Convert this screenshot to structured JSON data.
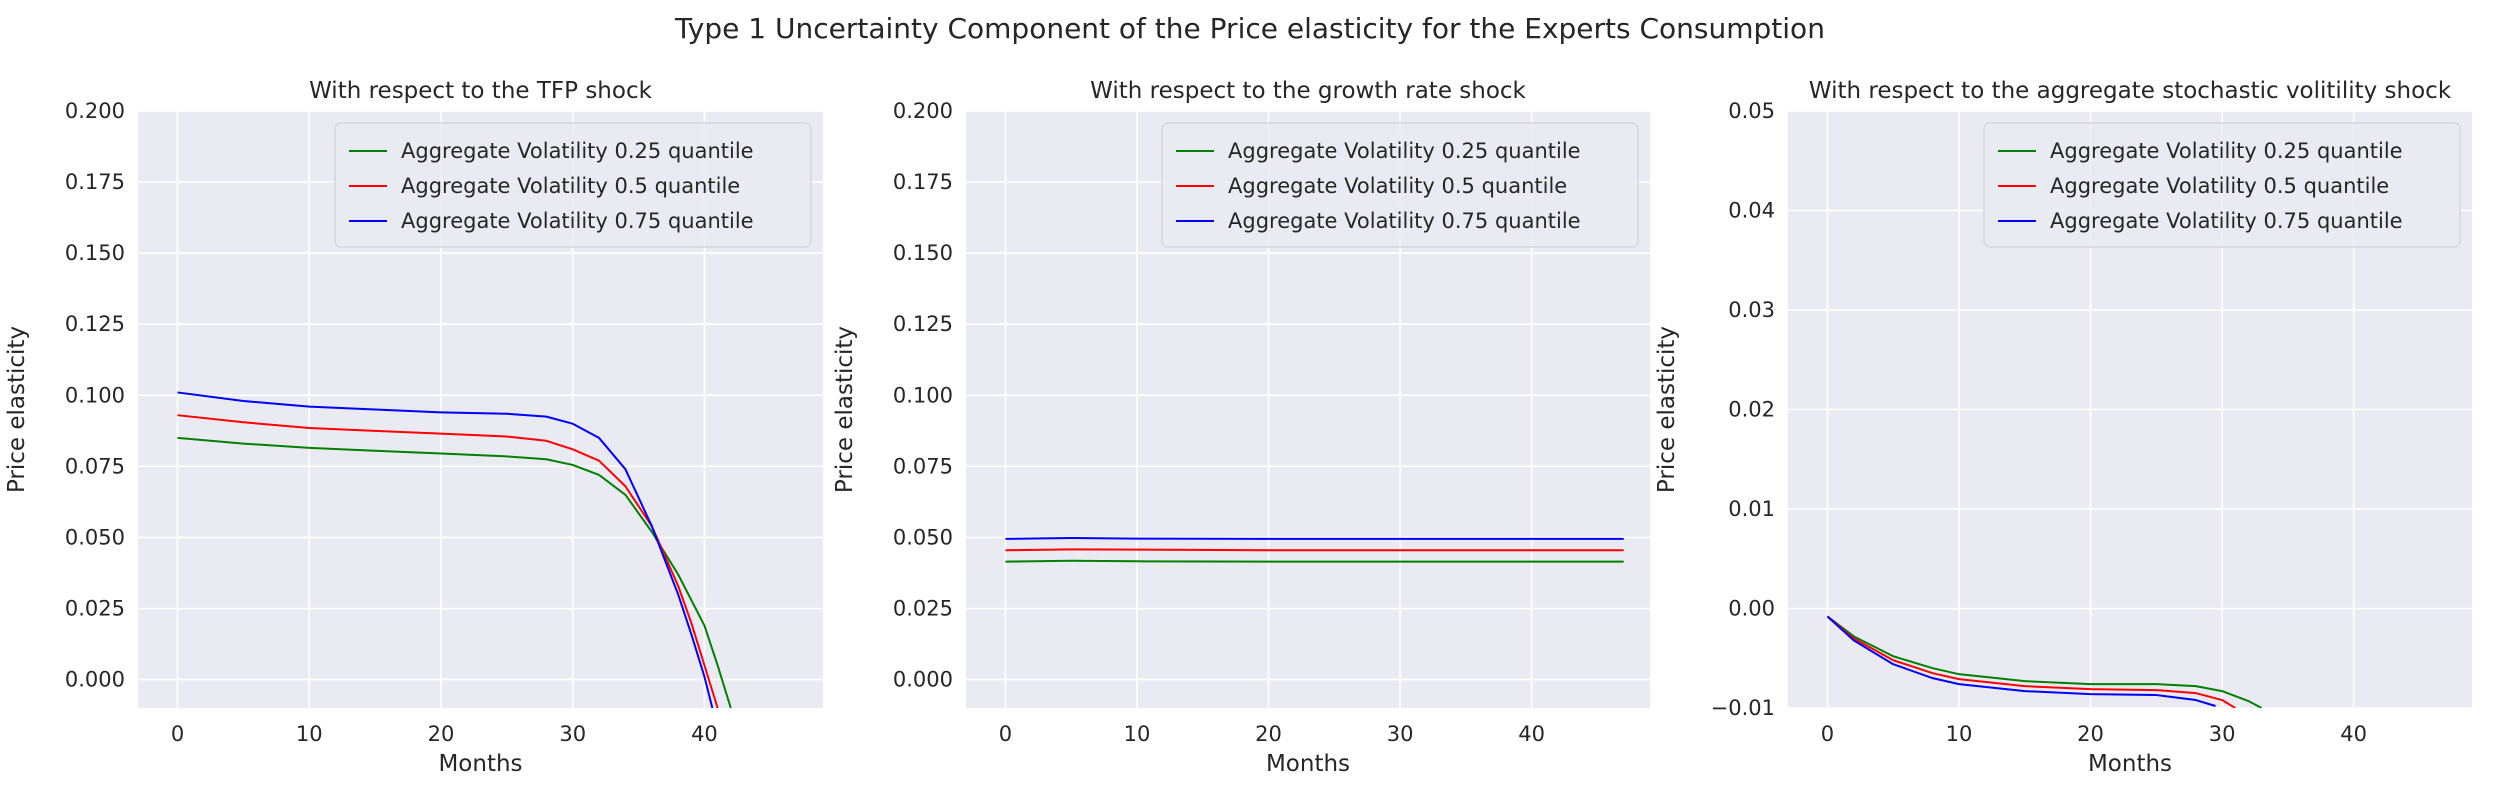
{
  "suptitle": "Type 1 Uncertainty Component of the Price elasticity for the Experts Consumption",
  "chart_data": [
    {
      "type": "line",
      "title": "With respect to the TFP shock",
      "xlabel": "Months",
      "ylabel": "Price elasticity",
      "xlim": [
        -3,
        49
      ],
      "ylim": [
        -0.01,
        0.2
      ],
      "xticks": [
        0,
        10,
        20,
        30,
        40
      ],
      "yticks": [
        0.0,
        0.025,
        0.05,
        0.075,
        0.1,
        0.125,
        0.15,
        0.175,
        0.2
      ],
      "ytick_labels": [
        "0.000",
        "0.025",
        "0.050",
        "0.075",
        "0.100",
        "0.125",
        "0.150",
        "0.175",
        "0.200"
      ],
      "legend_loc": "upper right",
      "grid": true,
      "series": [
        {
          "name": "Aggregate Volatility 0.25 quantile",
          "color": "#008000",
          "x": [
            0,
            5,
            10,
            15,
            20,
            25,
            28,
            30,
            32,
            34,
            36,
            38,
            40,
            41,
            42
          ],
          "y": [
            0.085,
            0.083,
            0.0815,
            0.0805,
            0.0795,
            0.0785,
            0.0775,
            0.0755,
            0.072,
            0.065,
            0.052,
            0.037,
            0.019,
            0.005,
            -0.01
          ]
        },
        {
          "name": "Aggregate Volatility 0.5 quantile",
          "color": "#ff0000",
          "x": [
            0,
            5,
            10,
            15,
            20,
            25,
            28,
            30,
            32,
            34,
            36,
            38,
            39,
            40,
            41
          ],
          "y": [
            0.093,
            0.0905,
            0.0885,
            0.0875,
            0.0865,
            0.0855,
            0.084,
            0.081,
            0.077,
            0.068,
            0.054,
            0.033,
            0.02,
            0.005,
            -0.01
          ]
        },
        {
          "name": "Aggregate Volatility 0.75 quantile",
          "color": "#0000ff",
          "x": [
            0,
            5,
            10,
            15,
            20,
            25,
            28,
            30,
            32,
            34,
            36,
            38,
            39,
            40,
            40.6
          ],
          "y": [
            0.101,
            0.098,
            0.096,
            0.095,
            0.094,
            0.0935,
            0.0925,
            0.09,
            0.085,
            0.074,
            0.054,
            0.03,
            0.016,
            0.001,
            -0.01
          ]
        }
      ]
    },
    {
      "type": "line",
      "title": "With respect to the growth rate shock",
      "xlabel": "Months",
      "ylabel": "Price elasticity",
      "xlim": [
        -3,
        49
      ],
      "ylim": [
        -0.01,
        0.2
      ],
      "xticks": [
        0,
        10,
        20,
        30,
        40
      ],
      "yticks": [
        0.0,
        0.025,
        0.05,
        0.075,
        0.1,
        0.125,
        0.15,
        0.175,
        0.2
      ],
      "ytick_labels": [
        "0.000",
        "0.025",
        "0.050",
        "0.075",
        "0.100",
        "0.125",
        "0.150",
        "0.175",
        "0.200"
      ],
      "legend_loc": "upper right",
      "grid": true,
      "series": [
        {
          "name": "Aggregate Volatility 0.25 quantile",
          "color": "#008000",
          "x": [
            0,
            5,
            10,
            20,
            30,
            40,
            47
          ],
          "y": [
            0.0415,
            0.0418,
            0.0416,
            0.0415,
            0.0415,
            0.0415,
            0.0415
          ]
        },
        {
          "name": "Aggregate Volatility 0.5 quantile",
          "color": "#ff0000",
          "x": [
            0,
            5,
            10,
            20,
            30,
            40,
            47
          ],
          "y": [
            0.0455,
            0.0458,
            0.0457,
            0.0455,
            0.0455,
            0.0455,
            0.0455
          ]
        },
        {
          "name": "Aggregate Volatility 0.75 quantile",
          "color": "#0000ff",
          "x": [
            0,
            5,
            10,
            20,
            30,
            40,
            47
          ],
          "y": [
            0.0495,
            0.0498,
            0.0496,
            0.0495,
            0.0495,
            0.0495,
            0.0495
          ]
        }
      ]
    },
    {
      "type": "line",
      "title": "With respect to the aggregate stochastic volitility shock",
      "xlabel": "Months",
      "ylabel": "Price elasticity",
      "xlim": [
        -3,
        49
      ],
      "ylim": [
        -0.01,
        0.05
      ],
      "xticks": [
        0,
        10,
        20,
        30,
        40
      ],
      "yticks": [
        -0.01,
        0.0,
        0.01,
        0.02,
        0.03,
        0.04,
        0.05
      ],
      "ytick_labels": [
        "−0.01",
        "0.00",
        "0.01",
        "0.02",
        "0.03",
        "0.04",
        "0.05"
      ],
      "legend_loc": "upper right",
      "grid": true,
      "series": [
        {
          "name": "Aggregate Volatility 0.25 quantile",
          "color": "#008000",
          "x": [
            0,
            2,
            5,
            8,
            10,
            15,
            20,
            25,
            28,
            30,
            32,
            33
          ],
          "y": [
            -0.0008,
            -0.0028,
            -0.0048,
            -0.006,
            -0.0066,
            -0.0073,
            -0.0076,
            -0.0076,
            -0.0078,
            -0.0083,
            -0.0093,
            -0.01
          ]
        },
        {
          "name": "Aggregate Volatility 0.5 quantile",
          "color": "#ff0000",
          "x": [
            0,
            2,
            5,
            8,
            10,
            15,
            20,
            25,
            28,
            30,
            31
          ],
          "y": [
            -0.0008,
            -0.003,
            -0.0052,
            -0.0065,
            -0.0071,
            -0.0078,
            -0.0081,
            -0.0082,
            -0.0085,
            -0.0092,
            -0.01
          ]
        },
        {
          "name": "Aggregate Volatility 0.75 quantile",
          "color": "#0000ff",
          "x": [
            0,
            2,
            5,
            8,
            10,
            15,
            20,
            25,
            28,
            29.5
          ],
          "y": [
            -0.0008,
            -0.0032,
            -0.0056,
            -0.007,
            -0.0076,
            -0.0083,
            -0.0086,
            -0.0087,
            -0.0092,
            -0.0098
          ]
        }
      ]
    }
  ]
}
